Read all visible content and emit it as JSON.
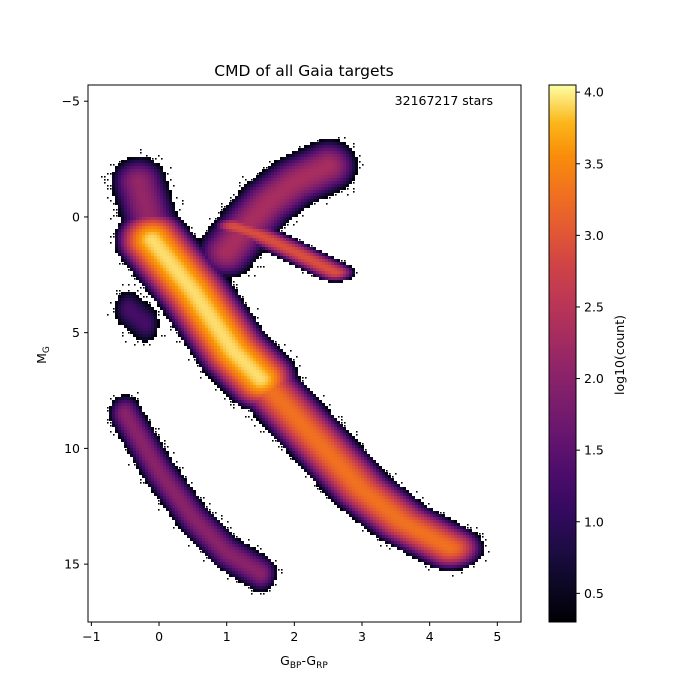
{
  "chart_data": {
    "type": "heatmap",
    "title": "CMD of all Gaia targets",
    "xlabel": "G",
    "xlabel_sub1": "BP",
    "xlabel_mid": "-G",
    "xlabel_sub2": "RP",
    "ylabel": "M",
    "ylabel_sub": "G",
    "xlim": [
      -1.05,
      5.35
    ],
    "ylim": [
      17.5,
      -5.7
    ],
    "y_inverted": true,
    "x_ticks": [
      -1,
      0,
      1,
      2,
      3,
      4,
      5
    ],
    "x_tick_labels": [
      "−1",
      "0",
      "1",
      "2",
      "3",
      "4",
      "5"
    ],
    "y_ticks": [
      -5,
      0,
      5,
      10,
      15
    ],
    "y_tick_labels": [
      "−5",
      "0",
      "5",
      "10",
      "15"
    ],
    "annotation": "32167217 stars",
    "annotation_position": "top-right",
    "colorbar": {
      "label": "log10(count)",
      "colormap": "inferno",
      "range": [
        0.3,
        4.05
      ],
      "ticks": [
        0.5,
        1.0,
        1.5,
        2.0,
        2.5,
        3.0,
        3.5,
        4.0
      ],
      "tick_labels": [
        "0.5",
        "1.0",
        "1.5",
        "2.0",
        "2.5",
        "3.0",
        "3.5",
        "4.0"
      ]
    },
    "density_components": [
      {
        "name": "main sequence upper",
        "path": [
          [
            -0.1,
            1.0
          ],
          [
            0.5,
            3.2
          ],
          [
            0.8,
            4.5
          ],
          [
            1.1,
            5.8
          ],
          [
            1.5,
            7.0
          ]
        ],
        "width": 0.28,
        "height": 0.7,
        "peak": 3.9
      },
      {
        "name": "main sequence lower",
        "path": [
          [
            1.5,
            7.0
          ],
          [
            2.0,
            8.6
          ],
          [
            2.5,
            10.2
          ],
          [
            3.0,
            11.8
          ],
          [
            3.6,
            13.2
          ],
          [
            4.3,
            14.3
          ]
        ],
        "width": 0.28,
        "height": 0.55,
        "peak": 3.2
      },
      {
        "name": "upper main sequence",
        "path": [
          [
            -0.3,
            -1.5
          ],
          [
            -0.1,
            0.5
          ]
        ],
        "width": 0.3,
        "height": 0.8,
        "peak": 2.0
      },
      {
        "name": "red clump",
        "path": [
          [
            1.1,
            0.4
          ],
          [
            1.5,
            0.8
          ],
          [
            2.0,
            1.5
          ],
          [
            2.6,
            2.4
          ]
        ],
        "width": 0.18,
        "height": 0.25,
        "peak": 2.8
      },
      {
        "name": "giant branch",
        "path": [
          [
            1.0,
            1.5
          ],
          [
            1.3,
            0.4
          ],
          [
            1.6,
            -0.6
          ],
          [
            2.0,
            -1.5
          ],
          [
            2.5,
            -2.2
          ]
        ],
        "width": 0.3,
        "height": 0.8,
        "peak": 2.2
      },
      {
        "name": "white dwarf sequence",
        "path": [
          [
            -0.5,
            8.5
          ],
          [
            0.0,
            11.0
          ],
          [
            0.5,
            13.0
          ],
          [
            1.0,
            14.5
          ],
          [
            1.5,
            15.4
          ]
        ],
        "width": 0.18,
        "height": 0.6,
        "peak": 1.9
      },
      {
        "name": "hot subdwarfs",
        "path": [
          [
            -0.45,
            4.0
          ],
          [
            -0.2,
            4.6
          ]
        ],
        "width": 0.2,
        "height": 0.8,
        "peak": 1.2
      }
    ]
  }
}
